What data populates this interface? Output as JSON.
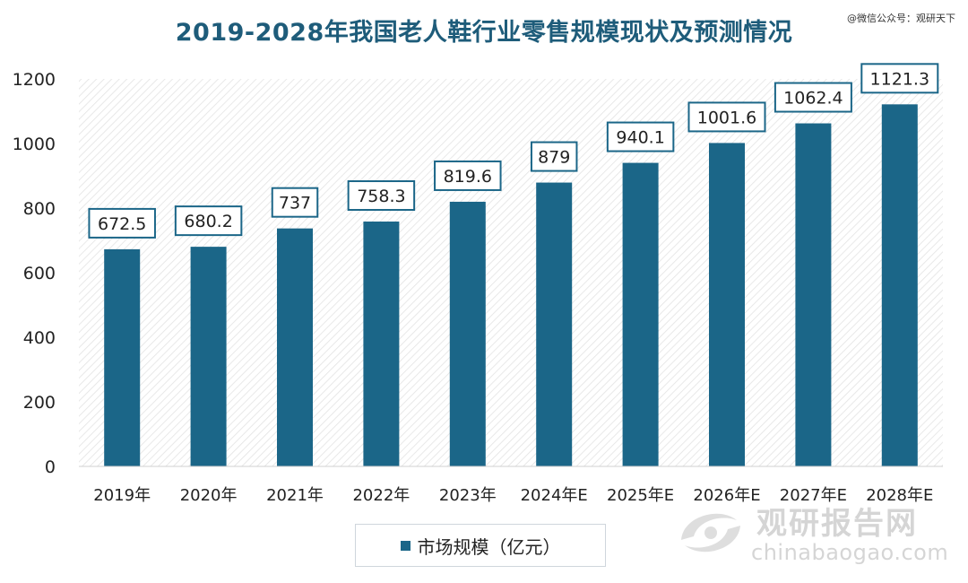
{
  "source_note": "@微信公众号：观研天下",
  "watermark": {
    "cn": "观研报告网",
    "en": "chinabaogao.com"
  },
  "colors": {
    "bar": "#1b6688",
    "title": "#1e5c7a",
    "label_border": "#1b6688"
  },
  "chart_data": {
    "type": "bar",
    "title": "2019-2028年我国老人鞋行业零售规模现状及预测情况",
    "categories": [
      "2019年",
      "2020年",
      "2021年",
      "2022年",
      "2023年",
      "2024年E",
      "2025年E",
      "2026年E",
      "2027年E",
      "2028年E"
    ],
    "series": [
      {
        "name": "市场规模（亿元）",
        "values": [
          672.5,
          680.2,
          737,
          758.3,
          819.6,
          879,
          940.1,
          1001.6,
          1062.4,
          1121.3
        ]
      }
    ],
    "value_labels": [
      "672.5",
      "680.2",
      "737",
      "758.3",
      "819.6",
      "879",
      "940.1",
      "1001.6",
      "1062.4",
      "1121.3"
    ],
    "ylim": [
      0,
      1200
    ],
    "yticks": [
      0,
      200,
      400,
      600,
      800,
      1000,
      1200
    ],
    "xlabel": "",
    "ylabel": "",
    "legend_position": "bottom"
  }
}
